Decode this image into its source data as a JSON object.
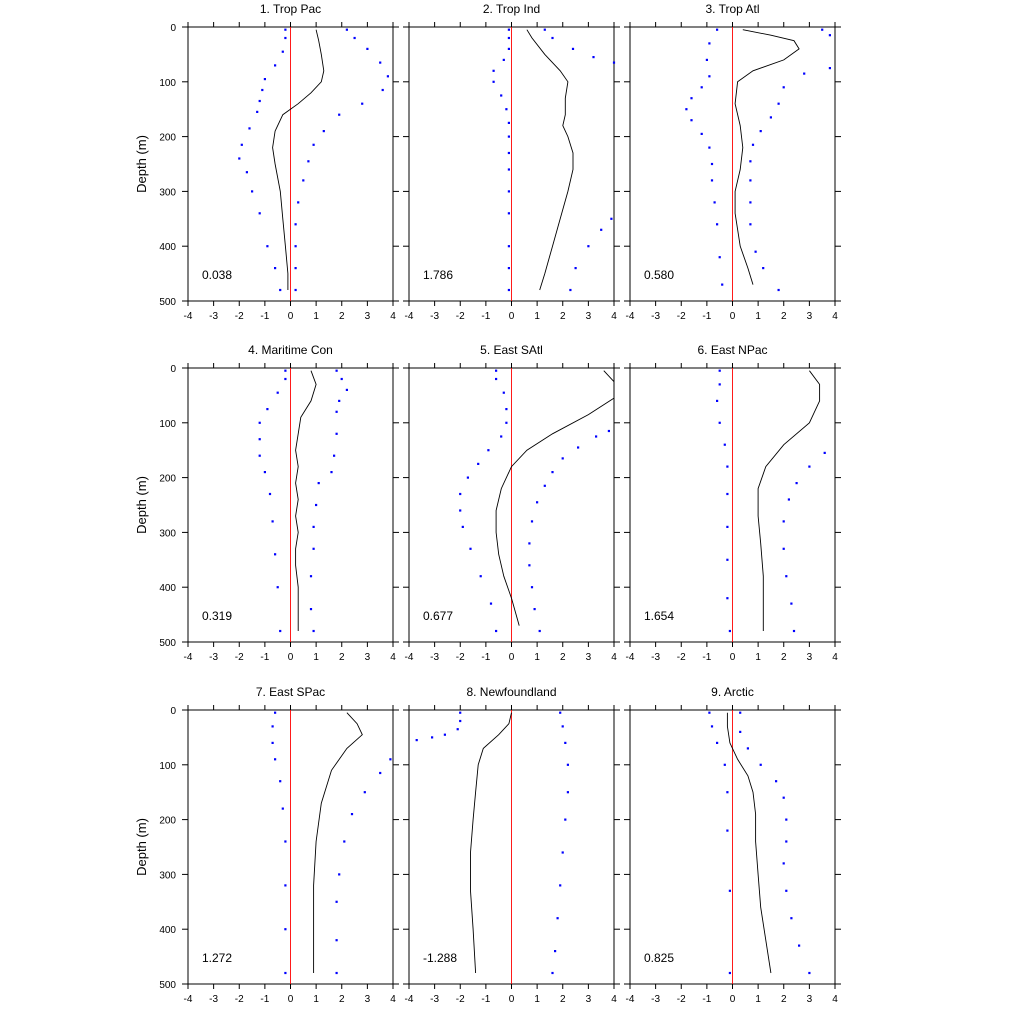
{
  "figure": {
    "ylabel": "Depth (m)",
    "colors": {
      "mean_line": "#000000",
      "spread_dots": "#0000ff",
      "zero_line": "#ff0000"
    }
  },
  "chart_data": [
    {
      "type": "line",
      "title": "1. Trop Pac",
      "ylabel": "Depth (m)",
      "xlim": [
        -4,
        4
      ],
      "ylim": [
        500,
        0
      ],
      "xticks": [
        "-4",
        "-3",
        "-2",
        "-1",
        "0",
        "1",
        "2",
        "3",
        "4"
      ],
      "yticks": [
        "0",
        "100",
        "200",
        "300",
        "400",
        "500"
      ],
      "annotation": "0.038",
      "mean_line": {
        "x": [
          1.0,
          1.1,
          1.2,
          1.3,
          1.2,
          0.8,
          0.3,
          -0.3,
          -0.6,
          -0.7,
          -0.6,
          -0.4,
          -0.3,
          -0.2,
          -0.1,
          -0.1
        ],
        "depth": [
          5,
          25,
          50,
          80,
          100,
          120,
          140,
          160,
          190,
          220,
          250,
          300,
          350,
          400,
          450,
          480
        ]
      },
      "lower_dots": {
        "x": [
          -0.2,
          -0.2,
          -0.3,
          -0.6,
          -1.0,
          -1.1,
          -1.2,
          -1.3,
          -1.6,
          -1.9,
          -2.0,
          -1.7,
          -1.5,
          -1.2,
          -0.9,
          -0.6,
          -0.4
        ],
        "depth": [
          5,
          20,
          45,
          70,
          95,
          115,
          135,
          155,
          185,
          215,
          240,
          265,
          300,
          340,
          400,
          440,
          480
        ]
      },
      "upper_dots": {
        "x": [
          2.2,
          2.5,
          3.0,
          3.5,
          3.8,
          3.6,
          2.8,
          1.9,
          1.3,
          0.9,
          0.7,
          0.5,
          0.3,
          0.2,
          0.2,
          0.2,
          0.2
        ],
        "depth": [
          5,
          20,
          40,
          65,
          90,
          115,
          140,
          160,
          190,
          215,
          245,
          280,
          320,
          360,
          400,
          440,
          480
        ]
      }
    },
    {
      "type": "line",
      "title": "2. Trop Ind",
      "ylabel": "",
      "xlim": [
        -4,
        4
      ],
      "ylim": [
        500,
        0
      ],
      "xticks": [
        "-4",
        "-3",
        "-2",
        "-1",
        "0",
        "1",
        "2",
        "3",
        "4"
      ],
      "yticks": [
        "0",
        "100",
        "200",
        "300",
        "400",
        "500"
      ],
      "annotation": "1.786",
      "mean_line": {
        "x": [
          0.6,
          0.8,
          1.3,
          1.9,
          2.2,
          2.1,
          2.1,
          2.0,
          2.2,
          2.4,
          2.4,
          2.2,
          1.9,
          1.6,
          1.3,
          1.1
        ],
        "depth": [
          5,
          20,
          50,
          80,
          100,
          130,
          160,
          180,
          200,
          230,
          260,
          300,
          350,
          400,
          450,
          480
        ]
      },
      "lower_dots": {
        "x": [
          -0.1,
          -0.1,
          -0.1,
          -0.3,
          -0.7,
          -0.7,
          -0.4,
          -0.2,
          -0.1,
          -0.1,
          -0.1,
          -0.1,
          -0.1,
          -0.1,
          -0.1,
          -0.1,
          -0.1
        ],
        "depth": [
          5,
          20,
          40,
          60,
          80,
          100,
          125,
          150,
          175,
          200,
          230,
          260,
          300,
          340,
          400,
          440,
          480
        ]
      },
      "upper_dots": {
        "x": [
          1.3,
          1.6,
          2.4,
          3.2,
          4.0,
          3.9,
          3.5,
          3.0,
          2.5,
          2.3
        ],
        "depth": [
          5,
          20,
          40,
          55,
          65,
          350,
          370,
          400,
          440,
          480
        ]
      }
    },
    {
      "type": "line",
      "title": "3. Trop Atl",
      "ylabel": "",
      "xlim": [
        -4,
        4
      ],
      "ylim": [
        500,
        0
      ],
      "xticks": [
        "-4",
        "-3",
        "-2",
        "-1",
        "0",
        "1",
        "2",
        "3",
        "4"
      ],
      "yticks": [
        "0",
        "100",
        "200",
        "300",
        "400",
        "500"
      ],
      "annotation": "0.580",
      "mean_line": {
        "x": [
          0.4,
          1.5,
          2.4,
          2.6,
          2.0,
          0.8,
          0.2,
          0.1,
          0.3,
          0.4,
          0.3,
          0.1,
          0.1,
          0.3,
          0.6,
          0.8
        ],
        "depth": [
          5,
          15,
          25,
          40,
          60,
          80,
          100,
          140,
          180,
          220,
          260,
          300,
          340,
          400,
          440,
          470
        ]
      },
      "lower_dots": {
        "x": [
          -0.6,
          -0.9,
          -1.0,
          -0.9,
          -1.2,
          -1.6,
          -1.8,
          -1.6,
          -1.2,
          -0.9,
          -0.8,
          -0.8,
          -0.7,
          -0.6,
          -0.5,
          -0.4
        ],
        "depth": [
          5,
          30,
          60,
          90,
          110,
          130,
          150,
          170,
          195,
          220,
          250,
          280,
          320,
          360,
          420,
          470
        ]
      },
      "upper_dots": {
        "x": [
          3.5,
          3.8,
          3.8,
          2.8,
          2.0,
          1.8,
          1.5,
          1.1,
          0.8,
          0.7,
          0.7,
          0.7,
          0.7,
          0.9,
          1.2,
          1.8
        ],
        "depth": [
          5,
          15,
          75,
          85,
          110,
          140,
          165,
          190,
          215,
          245,
          280,
          320,
          360,
          410,
          440,
          480
        ]
      }
    },
    {
      "type": "line",
      "title": "4. Maritime Con",
      "ylabel": "Depth (m)",
      "xlim": [
        -4,
        4
      ],
      "ylim": [
        500,
        0
      ],
      "xticks": [
        "-4",
        "-3",
        "-2",
        "-1",
        "0",
        "1",
        "2",
        "3",
        "4"
      ],
      "yticks": [
        "0",
        "100",
        "200",
        "300",
        "400",
        "500"
      ],
      "annotation": "0.319",
      "mean_line": {
        "x": [
          0.8,
          1.0,
          0.8,
          0.4,
          0.3,
          0.2,
          0.3,
          0.2,
          0.3,
          0.2,
          0.3,
          0.2,
          0.2,
          0.3,
          0.3,
          0.3
        ],
        "depth": [
          5,
          30,
          60,
          90,
          120,
          150,
          180,
          210,
          240,
          270,
          300,
          330,
          360,
          400,
          440,
          480
        ]
      },
      "lower_dots": {
        "x": [
          -0.2,
          -0.2,
          -0.5,
          -0.9,
          -1.2,
          -1.2,
          -1.2,
          -1.0,
          -0.8,
          -0.7,
          -0.6,
          -0.5,
          -0.4
        ],
        "depth": [
          5,
          20,
          45,
          75,
          100,
          130,
          160,
          190,
          230,
          280,
          340,
          400,
          480
        ]
      },
      "upper_dots": {
        "x": [
          1.8,
          2.0,
          2.2,
          1.9,
          1.8,
          1.8,
          1.7,
          1.6,
          1.1,
          1.0,
          0.9,
          0.9,
          0.8,
          0.8,
          0.9
        ],
        "depth": [
          5,
          20,
          40,
          60,
          80,
          120,
          160,
          190,
          210,
          250,
          290,
          330,
          380,
          440,
          480
        ]
      }
    },
    {
      "type": "line",
      "title": "5. East SAtl",
      "ylabel": "",
      "xlim": [
        -4,
        4
      ],
      "ylim": [
        500,
        0
      ],
      "xticks": [
        "-4",
        "-3",
        "-2",
        "-1",
        "0",
        "1",
        "2",
        "3",
        "4"
      ],
      "yticks": [
        "0",
        "100",
        "200",
        "300",
        "400",
        "500"
      ],
      "annotation": "0.677",
      "mean_line": {
        "x": [
          3.6,
          4.0,
          4.0,
          3.0,
          1.6,
          0.6,
          0.0,
          -0.4,
          -0.6,
          -0.6,
          -0.5,
          -0.3,
          0.0,
          0.3
        ],
        "depth": [
          5,
          25,
          55,
          85,
          120,
          150,
          180,
          220,
          260,
          300,
          340,
          380,
          420,
          470
        ]
      },
      "lower_dots": {
        "x": [
          -0.6,
          -0.6,
          -0.3,
          -0.2,
          -0.2,
          -0.4,
          -0.9,
          -1.3,
          -1.7,
          -2.0,
          -2.0,
          -1.9,
          -1.6,
          -1.2,
          -0.8,
          -0.6
        ],
        "depth": [
          5,
          20,
          45,
          75,
          100,
          125,
          150,
          175,
          200,
          230,
          260,
          290,
          330,
          380,
          430,
          480
        ]
      },
      "upper_dots": {
        "x": [
          3.8,
          3.3,
          2.6,
          2.0,
          1.6,
          1.3,
          1.0,
          0.8,
          0.7,
          0.7,
          0.8,
          0.9,
          1.1
        ],
        "depth": [
          115,
          125,
          145,
          165,
          190,
          215,
          245,
          280,
          320,
          360,
          400,
          440,
          480
        ]
      }
    },
    {
      "type": "line",
      "title": "6. East NPac",
      "ylabel": "",
      "xlim": [
        -4,
        4
      ],
      "ylim": [
        500,
        0
      ],
      "xticks": [
        "-4",
        "-3",
        "-2",
        "-1",
        "0",
        "1",
        "2",
        "3",
        "4"
      ],
      "yticks": [
        "0",
        "100",
        "200",
        "300",
        "400",
        "500"
      ],
      "annotation": "1.654",
      "mean_line": {
        "x": [
          3.0,
          3.4,
          3.4,
          3.0,
          2.0,
          1.3,
          1.0,
          1.0,
          1.1,
          1.2,
          1.2,
          1.2
        ],
        "depth": [
          5,
          30,
          60,
          100,
          140,
          180,
          220,
          270,
          320,
          380,
          430,
          480
        ]
      },
      "lower_dots": {
        "x": [
          -0.5,
          -0.5,
          -0.6,
          -0.5,
          -0.3,
          -0.2,
          -0.2,
          -0.2,
          -0.2,
          -0.2,
          -0.1
        ],
        "depth": [
          5,
          30,
          60,
          100,
          140,
          180,
          230,
          290,
          350,
          420,
          480
        ]
      },
      "upper_dots": {
        "x": [
          3.6,
          3.0,
          2.5,
          2.2,
          2.0,
          2.0,
          2.1,
          2.3,
          2.4
        ],
        "depth": [
          155,
          180,
          210,
          240,
          280,
          330,
          380,
          430,
          480
        ]
      }
    },
    {
      "type": "line",
      "title": "7. East SPac",
      "ylabel": "Depth (m)",
      "xlim": [
        -4,
        4
      ],
      "ylim": [
        500,
        0
      ],
      "xticks": [
        "-4",
        "-3",
        "-2",
        "-1",
        "0",
        "1",
        "2",
        "3",
        "4"
      ],
      "yticks": [
        "0",
        "100",
        "200",
        "300",
        "400",
        "500"
      ],
      "annotation": "1.272",
      "mean_line": {
        "x": [
          2.2,
          2.6,
          2.8,
          2.2,
          1.6,
          1.2,
          1.0,
          0.9,
          0.9,
          0.9
        ],
        "depth": [
          5,
          25,
          45,
          70,
          110,
          170,
          240,
          320,
          400,
          480
        ]
      },
      "lower_dots": {
        "x": [
          -0.6,
          -0.7,
          -0.7,
          -0.6,
          -0.4,
          -0.3,
          -0.2,
          -0.2,
          -0.2,
          -0.2
        ],
        "depth": [
          5,
          30,
          60,
          90,
          130,
          180,
          240,
          320,
          400,
          480
        ]
      },
      "upper_dots": {
        "x": [
          3.9,
          3.5,
          2.9,
          2.4,
          2.1,
          1.9,
          1.8,
          1.8,
          1.8
        ],
        "depth": [
          90,
          115,
          150,
          190,
          240,
          300,
          350,
          420,
          480
        ]
      }
    },
    {
      "type": "line",
      "title": "8. Newfoundland",
      "ylabel": "",
      "xlim": [
        -4,
        4
      ],
      "ylim": [
        500,
        0
      ],
      "xticks": [
        "-4",
        "-3",
        "-2",
        "-1",
        "0",
        "1",
        "2",
        "3",
        "4"
      ],
      "yticks": [
        "0",
        "100",
        "200",
        "300",
        "400",
        "500"
      ],
      "annotation": "-1.288",
      "mean_line": {
        "x": [
          0.0,
          -0.1,
          -0.5,
          -1.1,
          -1.3,
          -1.4,
          -1.5,
          -1.6,
          -1.6,
          -1.5,
          -1.4
        ],
        "depth": [
          5,
          25,
          45,
          70,
          100,
          150,
          200,
          260,
          330,
          400,
          480
        ]
      },
      "lower_dots": {
        "x": [
          -2.0,
          -2.0,
          -2.1,
          -2.6,
          -3.1,
          -3.7
        ],
        "depth": [
          5,
          20,
          35,
          45,
          50,
          55
        ]
      },
      "upper_dots": {
        "x": [
          1.9,
          2.0,
          2.1,
          2.2,
          2.2,
          2.1,
          2.0,
          1.9,
          1.8,
          1.7,
          1.6
        ],
        "depth": [
          5,
          30,
          60,
          100,
          150,
          200,
          260,
          320,
          380,
          440,
          480
        ]
      }
    },
    {
      "type": "line",
      "title": "9. Arctic",
      "ylabel": "",
      "xlim": [
        -4,
        4
      ],
      "ylim": [
        500,
        0
      ],
      "xticks": [
        "-4",
        "-3",
        "-2",
        "-1",
        "0",
        "1",
        "2",
        "3",
        "4"
      ],
      "yticks": [
        "0",
        "100",
        "200",
        "300",
        "400",
        "500"
      ],
      "annotation": "0.825",
      "mean_line": {
        "x": [
          -0.2,
          -0.2,
          -0.1,
          0.2,
          0.6,
          0.8,
          0.9,
          0.9,
          1.0,
          1.1,
          1.3,
          1.5
        ],
        "depth": [
          5,
          30,
          60,
          90,
          120,
          150,
          190,
          240,
          300,
          360,
          420,
          480
        ]
      },
      "lower_dots": {
        "x": [
          -0.9,
          -0.8,
          -0.6,
          -0.3,
          -0.2,
          -0.2,
          -0.1,
          -0.1
        ],
        "depth": [
          5,
          30,
          60,
          100,
          150,
          220,
          330,
          480
        ]
      },
      "upper_dots": {
        "x": [
          0.3,
          0.3,
          0.6,
          1.1,
          1.7,
          2.0,
          2.1,
          2.1,
          2.0,
          2.1,
          2.3,
          2.6,
          3.0
        ],
        "depth": [
          5,
          40,
          70,
          100,
          130,
          160,
          200,
          240,
          280,
          330,
          380,
          430,
          480
        ]
      }
    }
  ]
}
